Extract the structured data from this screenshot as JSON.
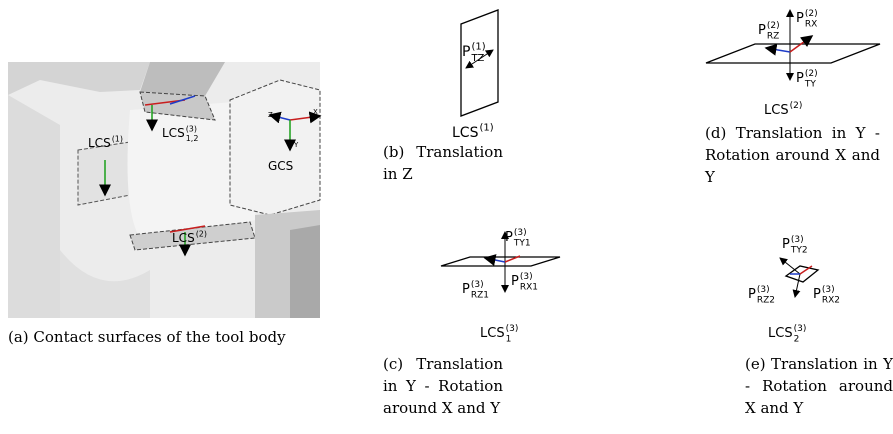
{
  "panels": [
    {
      "caption": "(a) Contact surfaces of the tool body",
      "labels": [
        {
          "base": "LCS",
          "sup": "(1)"
        },
        {
          "base": "LCS",
          "sup": "(3)",
          "sub": "1,2"
        },
        {
          "base": "LCS",
          "sup": "(2)"
        },
        {
          "base": "GCS"
        },
        {
          "base": "Z"
        },
        {
          "base": "X"
        },
        {
          "base": "Y"
        }
      ]
    },
    {
      "caption": "(b) Translation in Z",
      "labels": [
        {
          "base": "P",
          "sup": "(1)",
          "sub": "TZ"
        },
        {
          "base": "LCS",
          "sup": "(1)"
        }
      ]
    },
    {
      "caption": "(c) Translation in Y - Rotation around X and Y",
      "labels": [
        {
          "base": "P",
          "sup": "(3)",
          "sub": "TY1"
        },
        {
          "base": "P",
          "sup": "(3)",
          "sub": "RZ1"
        },
        {
          "base": "P",
          "sup": "(3)",
          "sub": "RX1"
        },
        {
          "base": "LCS",
          "sup": "(3)",
          "sub": "1"
        }
      ]
    },
    {
      "caption": "(d) Translation in Y - Rotation around X and Y",
      "labels": [
        {
          "base": "P",
          "sup": "(2)",
          "sub": "RZ"
        },
        {
          "base": "P",
          "sup": "(2)",
          "sub": "RX"
        },
        {
          "base": "P",
          "sup": "(2)",
          "sub": "TY"
        },
        {
          "base": "LCS",
          "sup": "(2)"
        }
      ]
    },
    {
      "caption": "(e) Translation in Y - Rotation around X and Y",
      "labels": [
        {
          "base": "P",
          "sup": "(3)",
          "sub": "TY2"
        },
        {
          "base": "P",
          "sup": "(3)",
          "sub": "RZ2"
        },
        {
          "base": "P",
          "sup": "(3)",
          "sub": "RX2"
        },
        {
          "base": "LCS",
          "sup": "(3)",
          "sub": "2"
        }
      ]
    }
  ]
}
